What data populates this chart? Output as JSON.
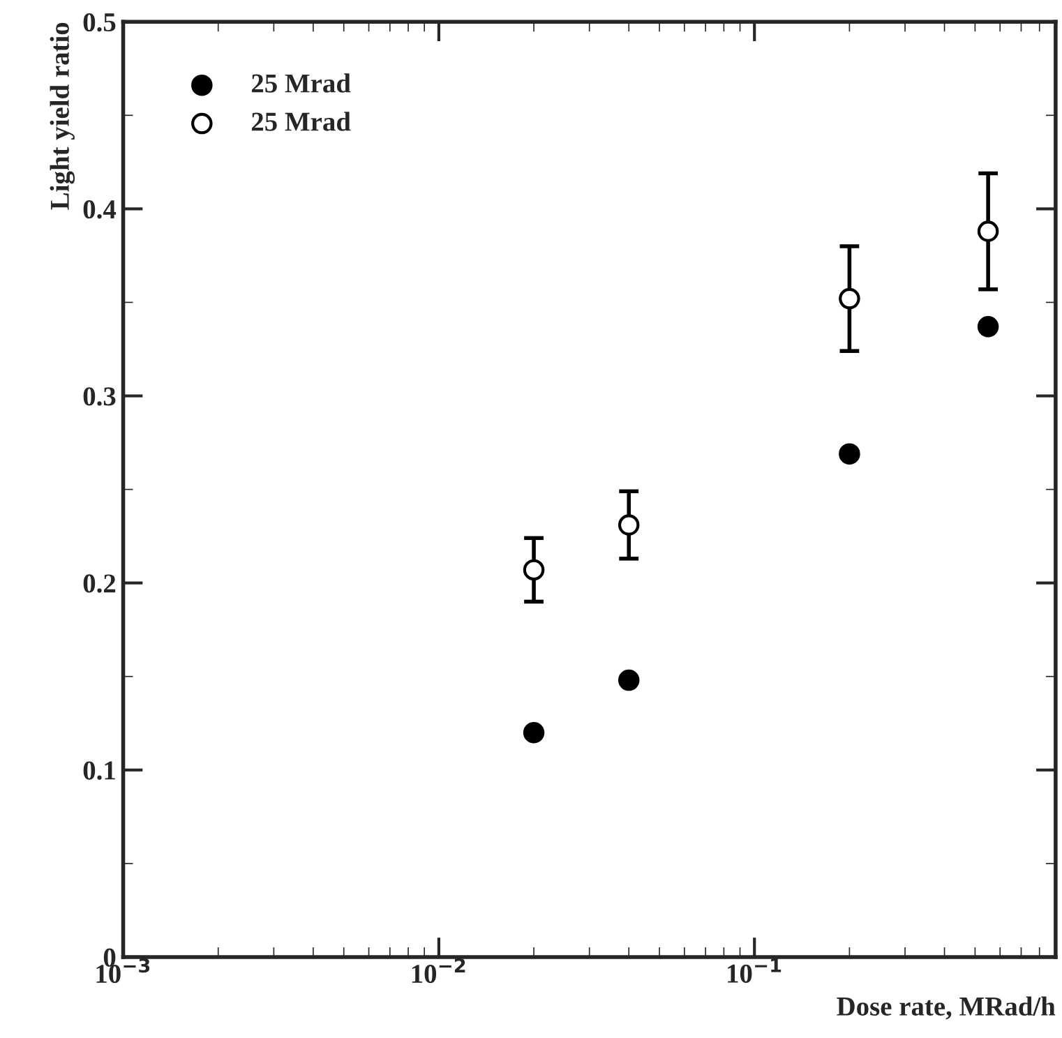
{
  "chart_data": {
    "type": "scatter",
    "xlabel": "Dose rate, MRad/h",
    "ylabel": "Light yield ratio",
    "log": "x",
    "xlim": [
      0.001,
      0.9
    ],
    "xticks": [
      {
        "value": 0.001,
        "label": "10$^{−3}$"
      },
      {
        "value": 0.01,
        "label": "10$^{−2}$"
      },
      {
        "value": 0.1,
        "label": "10$^{−1}$"
      }
    ],
    "ylim": [
      0,
      0.5
    ],
    "yticks": [
      {
        "value": 0,
        "label": "0"
      },
      {
        "value": 0.1,
        "label": "0.1"
      },
      {
        "value": 0.2,
        "label": "0.2"
      },
      {
        "value": 0.3,
        "label": "0.3"
      },
      {
        "value": 0.4,
        "label": "0.4"
      },
      {
        "value": 0.5,
        "label": "0.5"
      }
    ],
    "grid": false,
    "legend": "top left",
    "series": [
      {
        "name": "25 Mrad",
        "color": "#000000",
        "marker": "circle",
        "x": [
          0.02,
          0.04,
          0.2,
          0.55
        ],
        "values": [
          0.12,
          0.148,
          0.269,
          0.337
        ]
      },
      {
        "name": "25 Mrad",
        "color": "#ffffff",
        "marker": "circle",
        "x": [
          0.02,
          0.04,
          0.2,
          0.55
        ],
        "values": [
          0.207,
          0.231,
          0.352,
          0.388
        ],
        "errors": [
          0.017,
          0.018,
          0.028,
          0.031
        ]
      }
    ]
  }
}
